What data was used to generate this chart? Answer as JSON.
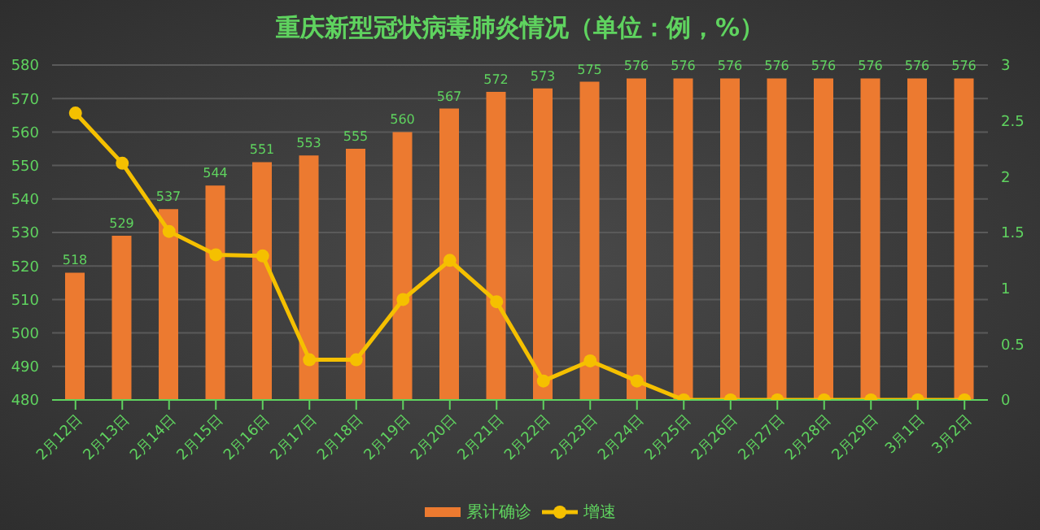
{
  "chart_data": {
    "type": "bar",
    "title": "重庆新型冠状病毒肺炎情况（单位：例，%）",
    "categories": [
      "2月12日",
      "2月13日",
      "2月14日",
      "2月15日",
      "2月16日",
      "2月17日",
      "2月18日",
      "2月19日",
      "2月20日",
      "2月21日",
      "2月22日",
      "2月23日",
      "2月24日",
      "2月25日",
      "2月26日",
      "2月27日",
      "2月28日",
      "2月29日",
      "3月1日",
      "3月2日"
    ],
    "series": [
      {
        "name": "累计确诊",
        "color": "#ec7a30",
        "values": [
          518,
          529,
          537,
          544,
          551,
          553,
          555,
          560,
          567,
          572,
          573,
          575,
          576,
          576,
          576,
          576,
          576,
          576,
          576,
          576
        ],
        "value_labels": [
          "518",
          "529",
          "537",
          "544",
          "551",
          "553",
          "555",
          "560",
          "567",
          "572",
          "573",
          "575",
          "576",
          "576",
          "576",
          "576",
          "576",
          "576",
          "576",
          "576"
        ]
      },
      {
        "name": "增速",
        "type": "line",
        "axis": "y2",
        "color": "#f5c000",
        "values": [
          2.57,
          2.12,
          1.51,
          1.3,
          1.29,
          0.36,
          0.36,
          0.9,
          1.25,
          0.88,
          0.17,
          0.35,
          0.17,
          0,
          0,
          0,
          0,
          0,
          0,
          0
        ]
      }
    ],
    "ylim": [
      480,
      580
    ],
    "yticks": [
      480,
      490,
      500,
      510,
      520,
      530,
      540,
      550,
      560,
      570,
      580
    ],
    "y2lim": [
      0,
      3
    ],
    "y2ticks": [
      0,
      0.5,
      1,
      1.5,
      2,
      2.5,
      3
    ],
    "grid": "y",
    "legend": "bottom",
    "marker": "circle",
    "line_style": "solid"
  }
}
